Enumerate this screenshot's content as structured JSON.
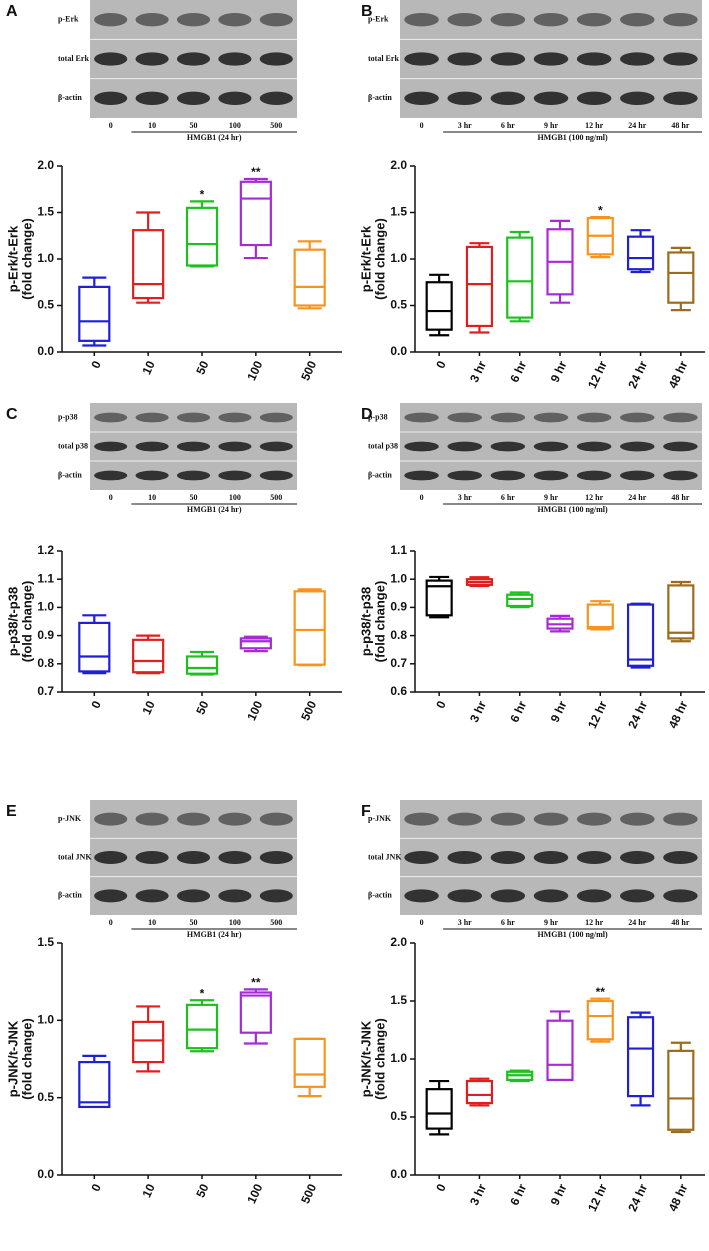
{
  "chart_data": [
    {
      "type": "box",
      "panel": "A",
      "ylabel": "p-Erk/t-Erk",
      "ylabel2": "(fold change)",
      "blot": {
        "rows": [
          "p-Erk",
          "total Erk",
          "β-actin"
        ],
        "treatment": "HMGB1 (24 hr)"
      },
      "categories": [
        "0",
        "10",
        "50",
        "100",
        "500"
      ],
      "ylim": [
        0,
        2
      ],
      "yticks": [
        {
          "value": 0,
          "label": "0.0"
        },
        0.5,
        {
          "value": 1,
          "label": "1.0"
        },
        1.5,
        {
          "value": 2,
          "label": "2.0"
        }
      ],
      "boxes": [
        {
          "color": "#1f1fd6",
          "min": 0.07,
          "q1": 0.12,
          "median": 0.33,
          "q3": 0.7,
          "max": 0.8
        },
        {
          "color": "#e01e1e",
          "min": 0.53,
          "q1": 0.58,
          "median": 0.73,
          "q3": 1.31,
          "max": 1.5
        },
        {
          "color": "#1fbf1f",
          "min": 0.92,
          "q1": 0.93,
          "median": 1.16,
          "q3": 1.55,
          "max": 1.62,
          "annotation": "*"
        },
        {
          "color": "#a62ad6",
          "min": 1.01,
          "q1": 1.15,
          "median": 1.65,
          "q3": 1.83,
          "max": 1.86,
          "annotation": "**"
        },
        {
          "color": "#f7931e",
          "min": 0.47,
          "q1": 0.5,
          "median": 0.7,
          "q3": 1.1,
          "max": 1.19
        }
      ]
    },
    {
      "type": "box",
      "panel": "B",
      "ylabel": "p-Erk/t-Erk",
      "ylabel2": "(fold change)",
      "blot": {
        "rows": [
          "p-Erk",
          "total Erk",
          "β-actin"
        ],
        "treatment": "HMGB1 (100 ng/ml)"
      },
      "categories": [
        "0",
        "3 hr",
        "6 hr",
        "9 hr",
        "12 hr",
        "24 hr",
        "48 hr"
      ],
      "ylim": [
        0,
        2
      ],
      "yticks": [
        {
          "value": 0,
          "label": "0.0"
        },
        0.5,
        {
          "value": 1,
          "label": "1.0"
        },
        1.5,
        {
          "value": 2,
          "label": "2.0"
        }
      ],
      "boxes": [
        {
          "color": "#000000",
          "min": 0.18,
          "q1": 0.24,
          "median": 0.44,
          "q3": 0.75,
          "max": 0.83
        },
        {
          "color": "#e01e1e",
          "min": 0.21,
          "q1": 0.28,
          "median": 0.73,
          "q3": 1.13,
          "max": 1.17
        },
        {
          "color": "#1fbf1f",
          "min": 0.33,
          "q1": 0.37,
          "median": 0.76,
          "q3": 1.23,
          "max": 1.29
        },
        {
          "color": "#a62ad6",
          "min": 0.53,
          "q1": 0.62,
          "median": 0.97,
          "q3": 1.32,
          "max": 1.41
        },
        {
          "color": "#f7931e",
          "min": 1.02,
          "q1": 1.05,
          "median": 1.25,
          "q3": 1.44,
          "max": 1.45,
          "annotation": "*"
        },
        {
          "color": "#1f1fd6",
          "min": 0.86,
          "q1": 0.89,
          "median": 1.01,
          "q3": 1.24,
          "max": 1.31
        },
        {
          "color": "#9c6b1e",
          "min": 0.45,
          "q1": 0.53,
          "median": 0.85,
          "q3": 1.07,
          "max": 1.12
        }
      ]
    },
    {
      "type": "box",
      "panel": "C",
      "ylabel": "p-p38/t-p38",
      "ylabel2": "(fold change)",
      "blot": {
        "rows": [
          "p-p38",
          "total p38",
          "β-actin"
        ],
        "treatment": "HMGB1 (24 hr)"
      },
      "categories": [
        "0",
        "10",
        "50",
        "100",
        "500"
      ],
      "ylim": [
        0.7,
        1.2
      ],
      "yticks": [
        0.7,
        0.8,
        0.9,
        {
          "value": 1,
          "label": "1.0"
        },
        1.1,
        1.2
      ],
      "boxes": [
        {
          "color": "#1f1fd6",
          "min": 0.767,
          "q1": 0.773,
          "median": 0.826,
          "q3": 0.945,
          "max": 0.972
        },
        {
          "color": "#e01e1e",
          "min": 0.767,
          "q1": 0.77,
          "median": 0.81,
          "q3": 0.885,
          "max": 0.9
        },
        {
          "color": "#1fbf1f",
          "min": 0.762,
          "q1": 0.765,
          "median": 0.785,
          "q3": 0.826,
          "max": 0.842
        },
        {
          "color": "#a62ad6",
          "min": 0.845,
          "q1": 0.855,
          "median": 0.88,
          "q3": 0.89,
          "max": 0.896
        },
        {
          "color": "#f7931e",
          "min": 0.795,
          "q1": 0.797,
          "median": 0.92,
          "q3": 1.057,
          "max": 1.064
        }
      ]
    },
    {
      "type": "box",
      "panel": "D",
      "ylabel": "p-p38/t-p38",
      "ylabel2": "(fold change)",
      "blot": {
        "rows": [
          "p-p38",
          "total p38",
          "β-actin"
        ],
        "treatment": "HMGB1 (100 ng/ml)"
      },
      "categories": [
        "0",
        "3 hr",
        "6 hr",
        "9 hr",
        "12 hr",
        "24 hr",
        "48 hr"
      ],
      "ylim": [
        0.6,
        1.1
      ],
      "yticks": [
        0.6,
        0.7,
        0.8,
        0.9,
        {
          "value": 1,
          "label": "1.0"
        },
        1.1
      ],
      "boxes": [
        {
          "color": "#000000",
          "min": 0.865,
          "q1": 0.872,
          "median": 0.975,
          "q3": 0.995,
          "max": 1.008
        },
        {
          "color": "#e01e1e",
          "min": 0.976,
          "q1": 0.98,
          "median": 0.99,
          "q3": 1.0,
          "max": 1.007
        },
        {
          "color": "#1fbf1f",
          "min": 0.901,
          "q1": 0.905,
          "median": 0.93,
          "q3": 0.945,
          "max": 0.953
        },
        {
          "color": "#a62ad6",
          "min": 0.815,
          "q1": 0.825,
          "median": 0.84,
          "q3": 0.86,
          "max": 0.87
        },
        {
          "color": "#f7931e",
          "min": 0.822,
          "q1": 0.825,
          "median": 0.83,
          "q3": 0.91,
          "max": 0.922
        },
        {
          "color": "#1f1fd6",
          "min": 0.687,
          "q1": 0.693,
          "median": 0.715,
          "q3": 0.91,
          "max": 0.913
        },
        {
          "color": "#9c6b1e",
          "min": 0.78,
          "q1": 0.79,
          "median": 0.81,
          "q3": 0.978,
          "max": 0.99
        }
      ]
    },
    {
      "type": "box",
      "panel": "E",
      "ylabel": "p-JNK/t-JNK",
      "ylabel2": "(fold change)",
      "blot": {
        "rows": [
          "p-JNK",
          "total JNK",
          "β-actin"
        ],
        "treatment": "HMGB1 (24 hr)"
      },
      "categories": [
        "0",
        "10",
        "50",
        "100",
        "500"
      ],
      "ylim": [
        0,
        1.5
      ],
      "yticks": [
        {
          "value": 0,
          "label": "0.0"
        },
        0.5,
        {
          "value": 1,
          "label": "1.0"
        },
        1.5
      ],
      "boxes": [
        {
          "color": "#1f1fd6",
          "min": 0.44,
          "q1": 0.44,
          "median": 0.47,
          "q3": 0.73,
          "max": 0.77
        },
        {
          "color": "#e01e1e",
          "min": 0.67,
          "q1": 0.73,
          "median": 0.87,
          "q3": 0.99,
          "max": 1.09
        },
        {
          "color": "#1fbf1f",
          "min": 0.8,
          "q1": 0.82,
          "median": 0.94,
          "q3": 1.1,
          "max": 1.13,
          "annotation": "*"
        },
        {
          "color": "#a62ad6",
          "min": 0.85,
          "q1": 0.92,
          "median": 1.16,
          "q3": 1.18,
          "max": 1.2,
          "annotation": "**"
        },
        {
          "color": "#f7931e",
          "min": 0.51,
          "q1": 0.57,
          "median": 0.65,
          "q3": 0.88,
          "max": 0.88
        }
      ]
    },
    {
      "type": "box",
      "panel": "F",
      "ylabel": "p-JNK/t-JNK",
      "ylabel2": "(fold change)",
      "blot": {
        "rows": [
          "p-JNK",
          "total JNK",
          "β-actin"
        ],
        "treatment": "HMGB1 (100 ng/ml)"
      },
      "categories": [
        "0",
        "3 hr",
        "6 hr",
        "9 hr",
        "12 hr",
        "24 hr",
        "48 hr"
      ],
      "ylim": [
        0,
        2
      ],
      "yticks": [
        {
          "value": 0,
          "label": "0.0"
        },
        0.5,
        {
          "value": 1,
          "label": "1.0"
        },
        1.5,
        {
          "value": 2,
          "label": "2.0"
        }
      ],
      "boxes": [
        {
          "color": "#000000",
          "min": 0.35,
          "q1": 0.4,
          "median": 0.53,
          "q3": 0.74,
          "max": 0.81
        },
        {
          "color": "#e01e1e",
          "min": 0.6,
          "q1": 0.62,
          "median": 0.69,
          "q3": 0.81,
          "max": 0.83
        },
        {
          "color": "#1fbf1f",
          "min": 0.81,
          "q1": 0.82,
          "median": 0.86,
          "q3": 0.89,
          "max": 0.9
        },
        {
          "color": "#a62ad6",
          "min": 0.82,
          "q1": 0.82,
          "median": 0.95,
          "q3": 1.33,
          "max": 1.41
        },
        {
          "color": "#f7931e",
          "min": 1.15,
          "q1": 1.17,
          "median": 1.37,
          "q3": 1.5,
          "max": 1.52,
          "annotation": "**"
        },
        {
          "color": "#1f1fd6",
          "min": 0.6,
          "q1": 0.68,
          "median": 1.09,
          "q3": 1.36,
          "max": 1.4
        },
        {
          "color": "#9c6b1e",
          "min": 0.37,
          "q1": 0.39,
          "median": 0.66,
          "q3": 1.07,
          "max": 1.14
        }
      ]
    }
  ]
}
